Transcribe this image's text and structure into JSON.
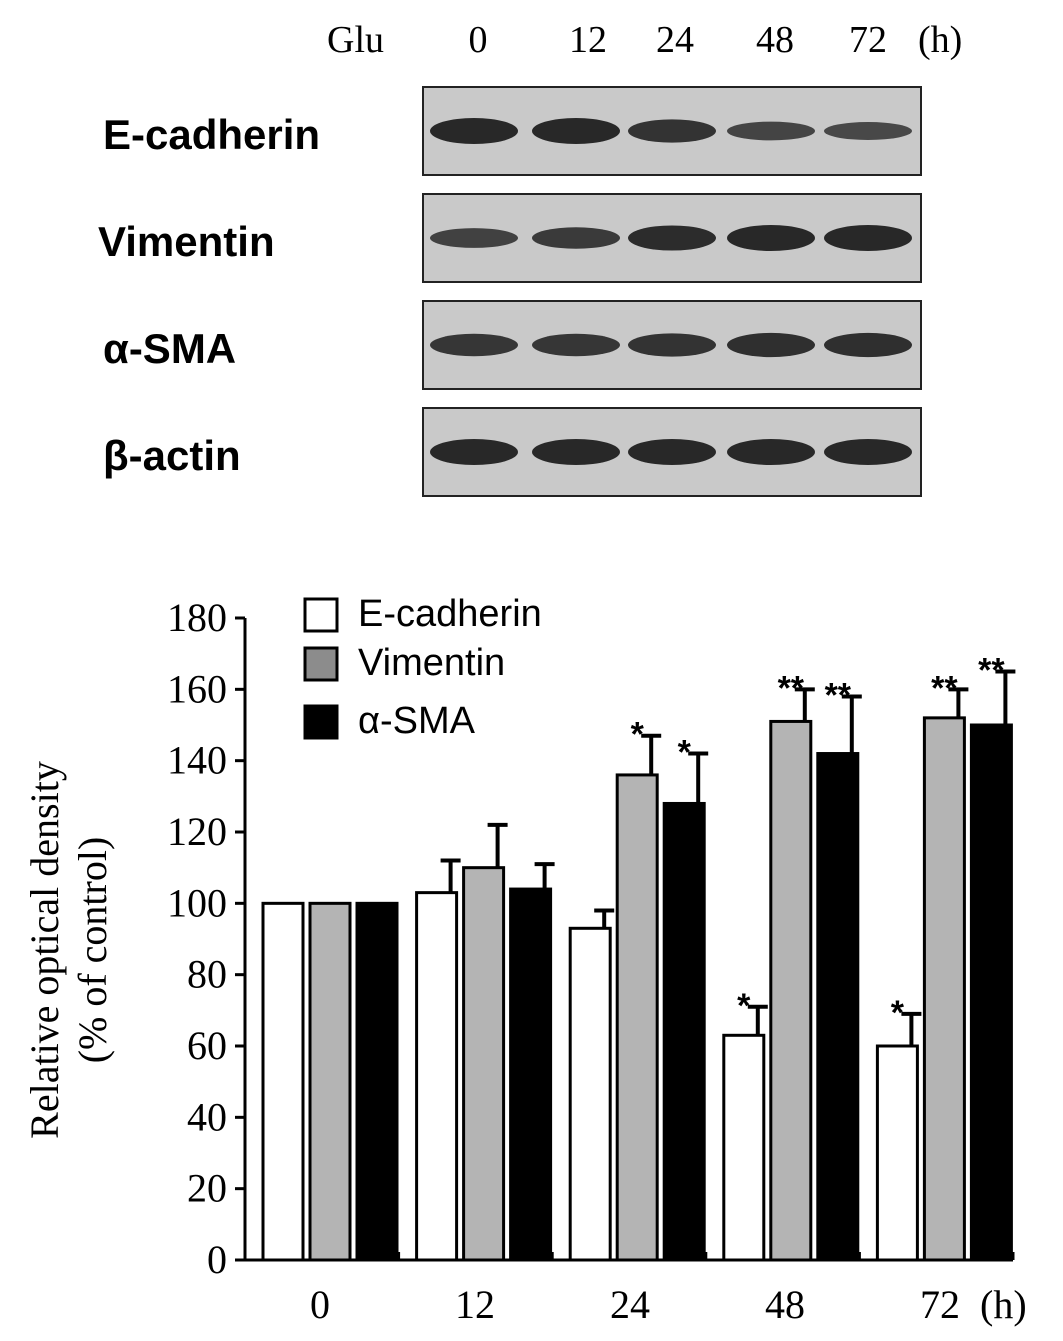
{
  "blot": {
    "treatment_label": "Glu",
    "time_labels": [
      "0",
      "12",
      "24",
      "48",
      "72"
    ],
    "unit_label": "(h)",
    "rows": [
      {
        "label": "E-cadherin",
        "intensities": [
          1.0,
          1.0,
          0.85,
          0.6,
          0.55
        ]
      },
      {
        "label": "Vimentin",
        "intensities": [
          0.65,
          0.75,
          0.95,
          1.0,
          1.0
        ]
      },
      {
        "label": "α-SMA",
        "intensities": [
          0.8,
          0.8,
          0.85,
          0.9,
          0.9
        ]
      },
      {
        "label": "β-actin",
        "intensities": [
          1.0,
          1.0,
          1.0,
          1.0,
          1.0
        ]
      }
    ]
  },
  "chart_data": {
    "type": "bar",
    "categories": [
      "0",
      "12",
      "24",
      "48",
      "72"
    ],
    "x_unit_label": "(h)",
    "ylabel": "Relative optical density",
    "ylabel_line2": "(% of control)",
    "ylim": [
      0,
      180
    ],
    "yticks": [
      "0",
      "20",
      "40",
      "60",
      "80",
      "100",
      "120",
      "140",
      "160",
      "180"
    ],
    "legend_position": "top-left",
    "series": [
      {
        "name": "E-cadherin",
        "color": "#ffffff",
        "values": [
          100,
          103,
          93,
          63,
          60
        ],
        "errors": [
          0,
          9,
          5,
          8,
          9
        ],
        "marks": [
          "",
          "",
          "",
          "*",
          "*"
        ]
      },
      {
        "name": "Vimentin",
        "color": "#b4b4b4",
        "values": [
          100,
          110,
          136,
          151,
          152
        ],
        "errors": [
          0,
          12,
          11,
          9,
          8
        ],
        "marks": [
          "",
          "",
          "*",
          "**",
          "**"
        ]
      },
      {
        "name": "α-SMA",
        "color": "#000000",
        "values": [
          100,
          104,
          128,
          142,
          150
        ],
        "errors": [
          0,
          7,
          14,
          16,
          15
        ],
        "marks": [
          "",
          "",
          "*",
          "**",
          "**"
        ]
      }
    ],
    "legend_swatch_colors": [
      "#ffffff",
      "#8c8c8c",
      "#000000"
    ]
  }
}
